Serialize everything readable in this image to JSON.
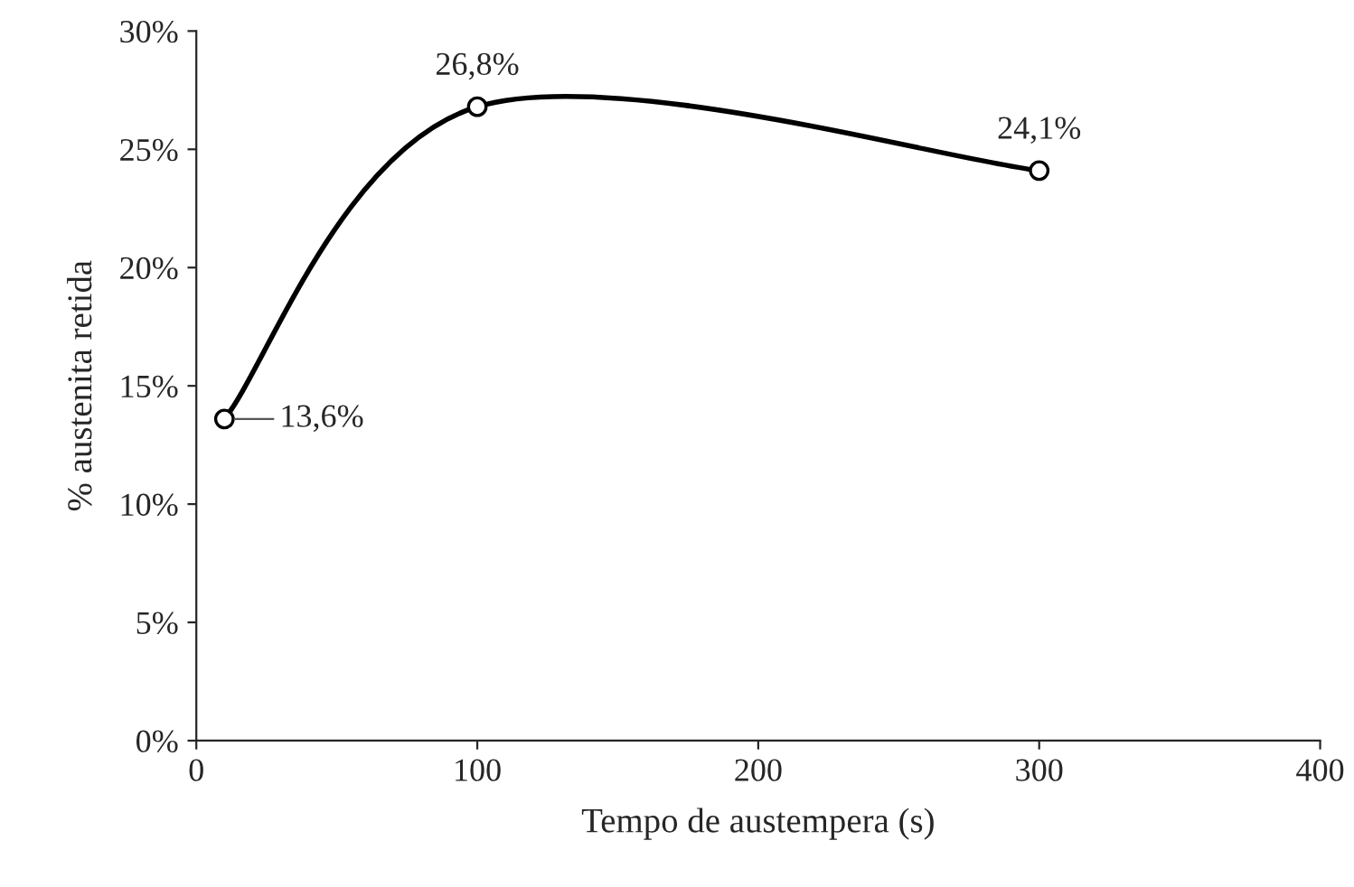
{
  "chart_data": {
    "type": "line",
    "xlabel": "Tempo de austempera (s)",
    "ylabel": "% austenita retida",
    "x": [
      10,
      100,
      300
    ],
    "series": [
      {
        "color": "#000000",
        "values": [
          13.6,
          26.8,
          24.1
        ],
        "value_labels": [
          "13,6%",
          "26,8%",
          "24,1%"
        ]
      }
    ],
    "xlim": [
      0,
      400
    ],
    "xticks": [
      0,
      100,
      200,
      300,
      400
    ],
    "ylim": [
      0,
      30
    ],
    "yticks": [
      {
        "value": 0,
        "label": "0%"
      },
      {
        "value": 5,
        "label": "5%"
      },
      {
        "value": 10,
        "label": "10%"
      },
      {
        "value": 15,
        "label": "15%"
      },
      {
        "value": 20,
        "label": "20%"
      },
      {
        "value": 25,
        "label": "25%"
      },
      {
        "value": 30,
        "label": "30%"
      }
    ],
    "marker": "circle",
    "line_style": "solid",
    "grid": false,
    "legend": false
  }
}
